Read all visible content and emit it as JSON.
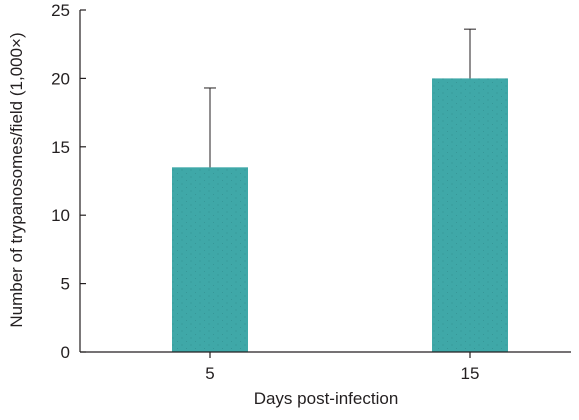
{
  "chart_data": {
    "type": "bar",
    "categories": [
      "5",
      "15"
    ],
    "values": [
      13.5,
      20.0
    ],
    "error_upper": [
      19.3,
      23.6
    ],
    "xlabel": "Days post-infection",
    "ylabel": "Number of trypanosomes/field (1,000×)",
    "ylim": [
      0,
      25
    ],
    "yticks": [
      0,
      5,
      10,
      15,
      20,
      25
    ],
    "grid": false,
    "colors": {
      "bar": "#3fa8a8",
      "bar_dots": "#2a7f80",
      "axis": "#231f20"
    }
  }
}
